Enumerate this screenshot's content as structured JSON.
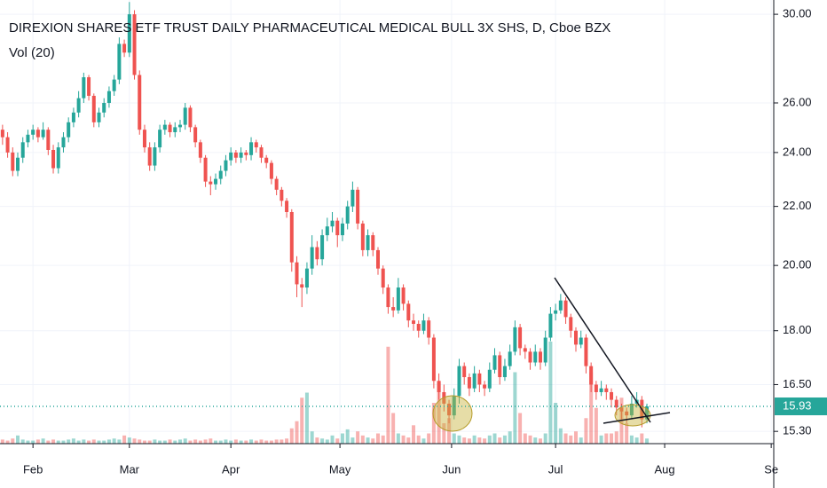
{
  "chart_data": {
    "type": "candlestick",
    "title": "DIREXION SHARES ETF TRUST DAILY PHARMACEUTICAL MEDICAL BULL 3X SHS, D, Cboe BZX",
    "subtitle": "Vol (20)",
    "log_scale": true,
    "grid": true,
    "up_color": "#26a69a",
    "down_color": "#ef5350",
    "ylim": [
      15.0,
      30.7
    ],
    "yticks": [
      {
        "value": 30,
        "label": "30.00"
      },
      {
        "value": 26,
        "label": "26.00"
      },
      {
        "value": 24,
        "label": "24.00"
      },
      {
        "value": 22,
        "label": "22.00"
      },
      {
        "value": 20,
        "label": "20.00"
      },
      {
        "value": 18,
        "label": "18.00"
      },
      {
        "value": 16.5,
        "label": "16.50"
      },
      {
        "value": 15.3,
        "label": "15.30"
      }
    ],
    "xlim": [
      -0.5,
      152
    ],
    "xticks": [
      {
        "value": 6,
        "label": "Feb"
      },
      {
        "value": 25,
        "label": "Mar"
      },
      {
        "value": 45,
        "label": "Apr"
      },
      {
        "value": 66.5,
        "label": "May"
      },
      {
        "value": 88.5,
        "label": "Jun"
      },
      {
        "value": 109,
        "label": "Jul"
      },
      {
        "value": 130.5,
        "label": "Aug"
      },
      {
        "value": 151.5,
        "label": "Se"
      }
    ],
    "last_price": 15.93,
    "volume_lim": [
      0,
      100
    ],
    "ohlc": [
      [
        24.9,
        25.1,
        24.3,
        24.6
      ],
      [
        24.6,
        24.8,
        23.8,
        24.0
      ],
      [
        24.0,
        24.2,
        23.1,
        23.3
      ],
      [
        23.3,
        24.0,
        23.1,
        23.8
      ],
      [
        23.8,
        24.6,
        23.6,
        24.4
      ],
      [
        24.4,
        24.9,
        24.2,
        24.7
      ],
      [
        24.7,
        25.1,
        24.5,
        24.9
      ],
      [
        24.9,
        25.0,
        24.4,
        24.6
      ],
      [
        24.6,
        25.2,
        24.5,
        24.9
      ],
      [
        24.9,
        25.0,
        23.9,
        24.1
      ],
      [
        24.1,
        24.3,
        23.2,
        23.4
      ],
      [
        23.4,
        24.4,
        23.2,
        24.2
      ],
      [
        24.2,
        24.8,
        24.0,
        24.6
      ],
      [
        24.6,
        25.4,
        24.4,
        25.2
      ],
      [
        25.2,
        25.8,
        25.0,
        25.6
      ],
      [
        25.6,
        26.5,
        25.4,
        26.2
      ],
      [
        26.2,
        27.3,
        26.0,
        27.1
      ],
      [
        27.1,
        27.2,
        26.1,
        26.3
      ],
      [
        26.3,
        26.4,
        25.0,
        25.2
      ],
      [
        25.2,
        25.8,
        25.0,
        25.6
      ],
      [
        25.6,
        26.2,
        25.4,
        26.0
      ],
      [
        26.0,
        26.7,
        25.8,
        26.5
      ],
      [
        26.5,
        27.2,
        26.3,
        27.0
      ],
      [
        27.0,
        28.9,
        26.8,
        28.6
      ],
      [
        28.6,
        28.8,
        28.0,
        28.2
      ],
      [
        28.2,
        30.6,
        28.0,
        30.0
      ],
      [
        30.0,
        30.2,
        27.0,
        27.2
      ],
      [
        27.2,
        27.4,
        24.7,
        24.9
      ],
      [
        24.9,
        25.1,
        24.0,
        24.2
      ],
      [
        24.2,
        24.4,
        23.3,
        23.5
      ],
      [
        23.5,
        24.4,
        23.3,
        24.2
      ],
      [
        24.2,
        25.1,
        24.0,
        24.9
      ],
      [
        24.9,
        25.3,
        24.7,
        25.1
      ],
      [
        25.1,
        25.2,
        24.6,
        24.8
      ],
      [
        24.8,
        25.2,
        24.6,
        25.0
      ],
      [
        25.0,
        25.3,
        24.8,
        25.1
      ],
      [
        25.1,
        26.0,
        24.9,
        25.8
      ],
      [
        25.8,
        25.9,
        24.8,
        25.0
      ],
      [
        25.0,
        25.1,
        24.2,
        24.4
      ],
      [
        24.4,
        24.5,
        23.6,
        23.8
      ],
      [
        23.8,
        23.9,
        22.7,
        22.9
      ],
      [
        22.9,
        23.1,
        22.4,
        22.8
      ],
      [
        22.8,
        23.2,
        22.6,
        23.0
      ],
      [
        23.0,
        23.5,
        22.8,
        23.3
      ],
      [
        23.3,
        23.9,
        23.1,
        23.7
      ],
      [
        23.7,
        24.2,
        23.5,
        24.0
      ],
      [
        24.0,
        24.1,
        23.6,
        23.8
      ],
      [
        23.8,
        24.2,
        23.6,
        24.0
      ],
      [
        24.0,
        24.1,
        23.7,
        23.9
      ],
      [
        23.9,
        24.6,
        23.7,
        24.4
      ],
      [
        24.4,
        24.5,
        24.0,
        24.2
      ],
      [
        24.2,
        24.3,
        23.6,
        23.8
      ],
      [
        23.8,
        23.9,
        23.4,
        23.6
      ],
      [
        23.6,
        23.7,
        22.8,
        23.0
      ],
      [
        23.0,
        23.1,
        22.4,
        22.6
      ],
      [
        22.6,
        22.7,
        22.0,
        22.2
      ],
      [
        22.2,
        22.3,
        21.6,
        21.8
      ],
      [
        21.8,
        21.9,
        19.8,
        20.1
      ],
      [
        20.1,
        20.3,
        19.0,
        19.4
      ],
      [
        19.4,
        19.6,
        18.7,
        19.3
      ],
      [
        19.3,
        20.1,
        19.1,
        19.9
      ],
      [
        19.9,
        21.0,
        19.7,
        20.6
      ],
      [
        20.6,
        20.8,
        20.0,
        20.2
      ],
      [
        20.2,
        21.2,
        20.0,
        21.0
      ],
      [
        21.0,
        21.6,
        20.8,
        21.3
      ],
      [
        21.3,
        21.8,
        21.1,
        21.5
      ],
      [
        21.5,
        21.6,
        20.6,
        21.0
      ],
      [
        21.0,
        21.6,
        20.8,
        21.4
      ],
      [
        21.4,
        22.2,
        21.2,
        22.0
      ],
      [
        22.0,
        22.9,
        21.8,
        22.6
      ],
      [
        22.6,
        22.7,
        21.2,
        21.4
      ],
      [
        21.4,
        21.5,
        20.3,
        20.5
      ],
      [
        20.5,
        21.2,
        20.3,
        21.0
      ],
      [
        21.0,
        21.1,
        20.3,
        20.5
      ],
      [
        20.5,
        20.6,
        19.7,
        19.9
      ],
      [
        19.9,
        20.0,
        19.1,
        19.3
      ],
      [
        19.3,
        19.4,
        18.5,
        18.7
      ],
      [
        18.7,
        19.0,
        18.4,
        18.6
      ],
      [
        18.6,
        19.6,
        18.5,
        19.3
      ],
      [
        19.3,
        19.4,
        18.6,
        18.8
      ],
      [
        18.8,
        18.9,
        18.1,
        18.3
      ],
      [
        18.3,
        18.5,
        18.0,
        18.2
      ],
      [
        18.2,
        18.3,
        17.8,
        18.0
      ],
      [
        18.0,
        18.5,
        17.9,
        18.3
      ],
      [
        18.3,
        18.4,
        17.6,
        17.8
      ],
      [
        17.8,
        17.9,
        16.4,
        16.6
      ],
      [
        16.6,
        16.8,
        16.1,
        16.3
      ],
      [
        16.3,
        16.5,
        15.8,
        16.0
      ],
      [
        16.0,
        16.1,
        15.5,
        15.7
      ],
      [
        15.7,
        16.4,
        15.6,
        16.2
      ],
      [
        16.2,
        17.2,
        16.0,
        17.0
      ],
      [
        17.0,
        17.1,
        16.5,
        16.7
      ],
      [
        16.7,
        16.8,
        16.2,
        16.4
      ],
      [
        16.4,
        17.0,
        16.3,
        16.8
      ],
      [
        16.8,
        16.9,
        16.3,
        16.5
      ],
      [
        16.5,
        16.6,
        16.2,
        16.4
      ],
      [
        16.4,
        17.1,
        16.3,
        16.9
      ],
      [
        16.9,
        17.5,
        16.8,
        17.3
      ],
      [
        17.3,
        17.4,
        16.5,
        16.7
      ],
      [
        16.7,
        17.2,
        16.6,
        17.0
      ],
      [
        17.0,
        17.6,
        16.9,
        17.4
      ],
      [
        17.4,
        18.3,
        17.3,
        18.1
      ],
      [
        18.1,
        18.2,
        17.3,
        17.5
      ],
      [
        17.5,
        17.6,
        17.2,
        17.4
      ],
      [
        17.4,
        17.5,
        16.9,
        17.1
      ],
      [
        17.1,
        17.6,
        17.0,
        17.4
      ],
      [
        17.4,
        17.5,
        16.9,
        17.1
      ],
      [
        17.1,
        18.0,
        17.0,
        17.8
      ],
      [
        17.8,
        18.7,
        17.7,
        18.5
      ],
      [
        18.5,
        18.8,
        18.3,
        18.6
      ],
      [
        18.6,
        19.1,
        18.5,
        18.9
      ],
      [
        18.9,
        19.0,
        18.2,
        18.4
      ],
      [
        18.4,
        18.5,
        17.8,
        18.0
      ],
      [
        18.0,
        18.1,
        17.4,
        17.6
      ],
      [
        17.6,
        18.0,
        17.5,
        17.8
      ],
      [
        17.8,
        17.9,
        16.8,
        17.0
      ],
      [
        17.0,
        17.1,
        16.3,
        16.5
      ],
      [
        16.5,
        16.6,
        16.1,
        16.3
      ],
      [
        16.3,
        16.6,
        16.2,
        16.4
      ],
      [
        16.4,
        16.5,
        16.1,
        16.3
      ],
      [
        16.3,
        16.4,
        15.9,
        16.1
      ],
      [
        16.1,
        16.2,
        15.7,
        15.9
      ],
      [
        15.9,
        16.0,
        15.6,
        15.8
      ],
      [
        15.8,
        15.9,
        15.5,
        15.7
      ],
      [
        15.7,
        16.2,
        15.6,
        16.0
      ],
      [
        16.0,
        16.3,
        15.9,
        16.1
      ],
      [
        16.1,
        16.2,
        15.4,
        15.6
      ],
      [
        15.6,
        16.0,
        15.5,
        15.93
      ]
    ],
    "volume": [
      4,
      3,
      5,
      8,
      4,
      3,
      3,
      4,
      5,
      3,
      4,
      3,
      3,
      4,
      5,
      3,
      4,
      3,
      4,
      3,
      3,
      4,
      5,
      4,
      8,
      6,
      5,
      4,
      3,
      3,
      4,
      3,
      3,
      4,
      3,
      4,
      5,
      3,
      4,
      3,
      4,
      5,
      3,
      3,
      4,
      3,
      4,
      3,
      3,
      4,
      3,
      4,
      3,
      3,
      4,
      4,
      5,
      15,
      22,
      45,
      50,
      12,
      6,
      5,
      4,
      8,
      5,
      10,
      14,
      6,
      12,
      8,
      6,
      5,
      10,
      8,
      95,
      30,
      10,
      8,
      6,
      18,
      8,
      5,
      10,
      40,
      60,
      20,
      25,
      10,
      8,
      6,
      5,
      8,
      6,
      5,
      8,
      10,
      6,
      8,
      12,
      70,
      30,
      10,
      8,
      6,
      5,
      10,
      100,
      40,
      15,
      10,
      8,
      12,
      6,
      25,
      70,
      35,
      8,
      10,
      10,
      12,
      45,
      20,
      8,
      6,
      10,
      5
    ]
  }
}
